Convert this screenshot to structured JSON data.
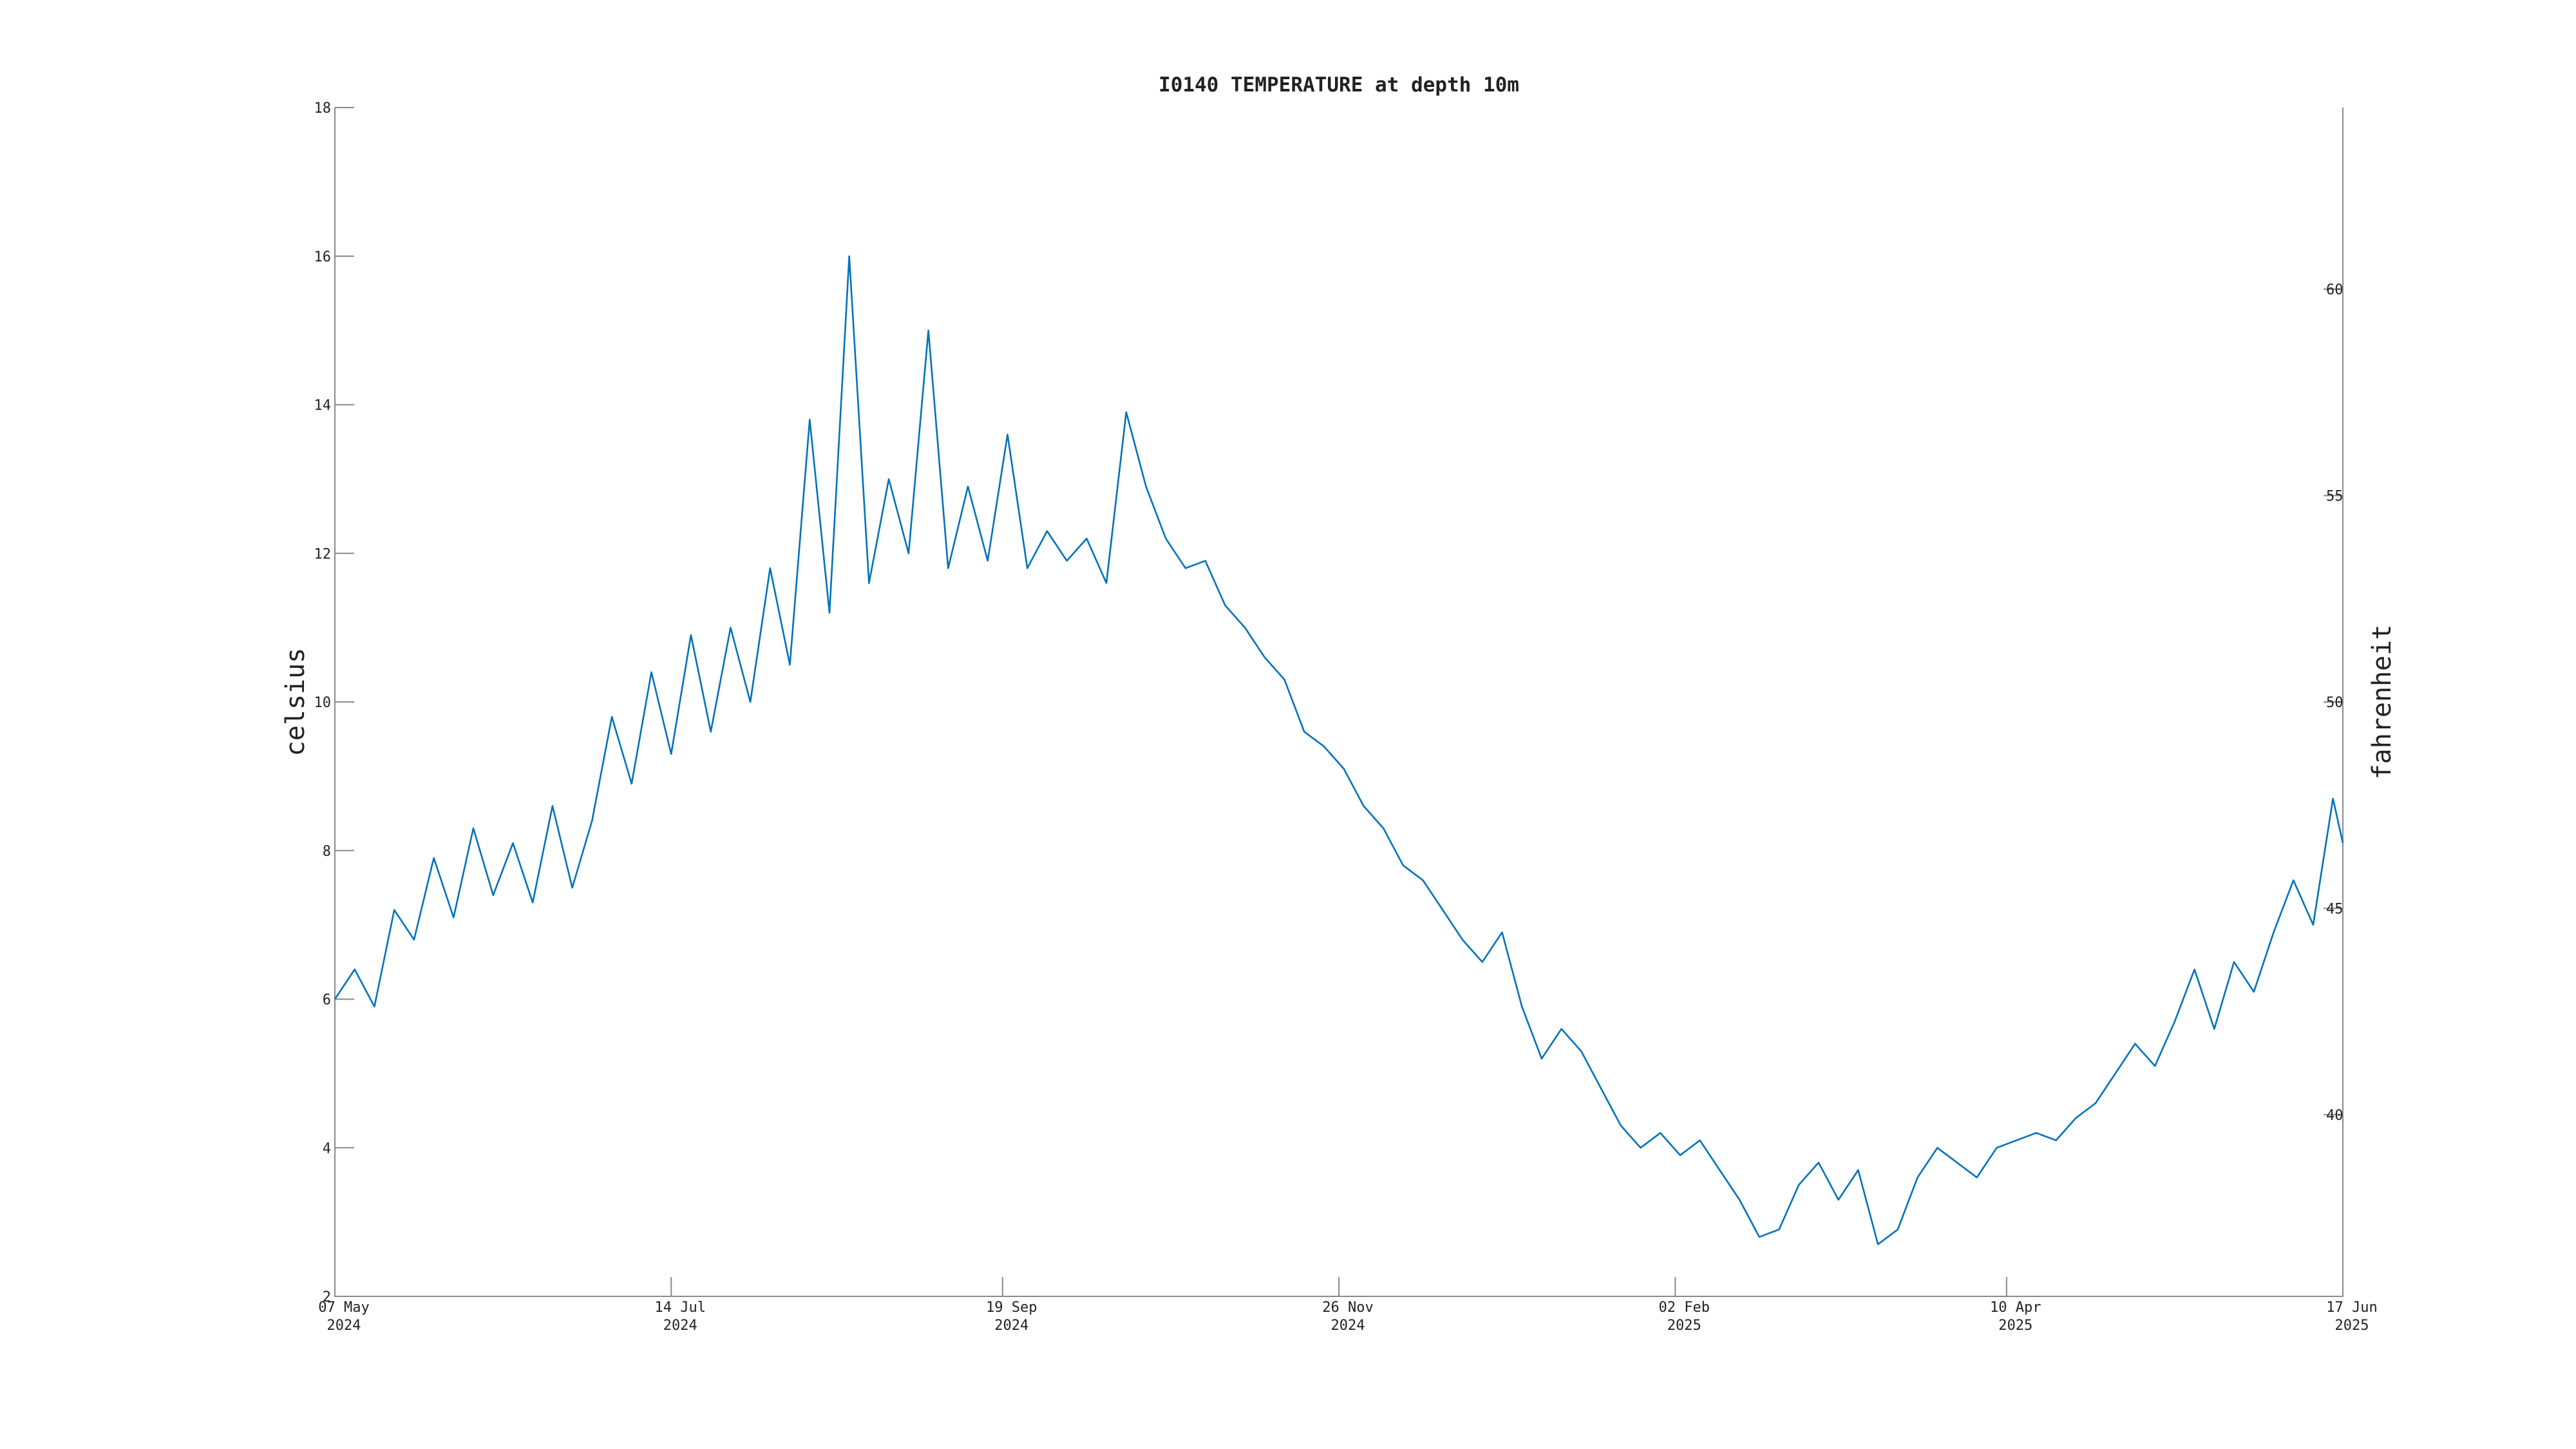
{
  "chart_data": {
    "type": "line",
    "title": "I0140 TEMPERATURE at depth 10m",
    "y_label": "celsius",
    "y2_label": "fahrenheit",
    "xlim": [
      "2024-05-07",
      "2025-06-17"
    ],
    "xticks": [
      {
        "value": "2024-05-07",
        "label": "07 May\n2024"
      },
      {
        "value": "2024-07-14",
        "label": "14 Jul\n2024"
      },
      {
        "value": "2024-09-19",
        "label": "19 Sep\n2024"
      },
      {
        "value": "2024-11-26",
        "label": "26 Nov\n2024"
      },
      {
        "value": "2025-02-02",
        "label": "02 Feb\n2025"
      },
      {
        "value": "2025-04-10",
        "label": "10 Apr\n2025"
      },
      {
        "value": "2025-06-17",
        "label": "17 Jun\n2025"
      }
    ],
    "ylim": [
      2,
      18
    ],
    "yticks": [
      2,
      4,
      6,
      8,
      10,
      12,
      14,
      16,
      18
    ],
    "y2lim": [
      35.6,
      64.4
    ],
    "y2ticks": [
      40,
      45,
      50,
      55,
      60
    ],
    "x": [
      "2024-05-07",
      "2024-05-11",
      "2024-05-15",
      "2024-05-19",
      "2024-05-23",
      "2024-05-27",
      "2024-05-31",
      "2024-06-04",
      "2024-06-08",
      "2024-06-12",
      "2024-06-16",
      "2024-06-20",
      "2024-06-24",
      "2024-06-28",
      "2024-07-02",
      "2024-07-06",
      "2024-07-10",
      "2024-07-14",
      "2024-07-18",
      "2024-07-22",
      "2024-07-26",
      "2024-07-30",
      "2024-08-03",
      "2024-08-07",
      "2024-08-11",
      "2024-08-15",
      "2024-08-19",
      "2024-08-23",
      "2024-08-27",
      "2024-08-31",
      "2024-09-04",
      "2024-09-08",
      "2024-09-12",
      "2024-09-16",
      "2024-09-20",
      "2024-09-24",
      "2024-09-28",
      "2024-10-02",
      "2024-10-06",
      "2024-10-10",
      "2024-10-14",
      "2024-10-18",
      "2024-10-22",
      "2024-10-26",
      "2024-10-30",
      "2024-11-03",
      "2024-11-07",
      "2024-11-11",
      "2024-11-15",
      "2024-11-19",
      "2024-11-23",
      "2024-11-27",
      "2024-12-01",
      "2024-12-05",
      "2024-12-09",
      "2024-12-13",
      "2024-12-17",
      "2024-12-21",
      "2024-12-25",
      "2024-12-29",
      "2025-01-02",
      "2025-01-06",
      "2025-01-10",
      "2025-01-14",
      "2025-01-18",
      "2025-01-22",
      "2025-01-26",
      "2025-01-30",
      "2025-02-03",
      "2025-02-07",
      "2025-02-11",
      "2025-02-15",
      "2025-02-19",
      "2025-02-23",
      "2025-02-27",
      "2025-03-03",
      "2025-03-07",
      "2025-03-11",
      "2025-03-15",
      "2025-03-19",
      "2025-03-23",
      "2025-03-27",
      "2025-03-31",
      "2025-04-04",
      "2025-04-08",
      "2025-04-12",
      "2025-04-16",
      "2025-04-20",
      "2025-04-24",
      "2025-04-28",
      "2025-05-02",
      "2025-05-06",
      "2025-05-10",
      "2025-05-14",
      "2025-05-18",
      "2025-05-22",
      "2025-05-26",
      "2025-05-30",
      "2025-06-03",
      "2025-06-07",
      "2025-06-11",
      "2025-06-15",
      "2025-06-17"
    ],
    "series": [
      {
        "name": "temperature",
        "color": "#0072bd",
        "values": [
          6.0,
          6.4,
          5.9,
          7.2,
          6.8,
          7.9,
          7.1,
          8.3,
          7.4,
          8.1,
          7.3,
          8.6,
          7.5,
          8.4,
          9.8,
          8.9,
          10.4,
          9.3,
          10.9,
          9.6,
          11.0,
          10.0,
          11.8,
          10.5,
          13.8,
          11.2,
          16.0,
          11.6,
          13.0,
          12.0,
          15.0,
          11.8,
          12.9,
          11.9,
          13.6,
          11.8,
          12.3,
          11.9,
          12.2,
          11.6,
          13.9,
          12.9,
          12.2,
          11.8,
          11.9,
          11.3,
          11.0,
          10.6,
          10.3,
          9.6,
          9.4,
          9.1,
          8.6,
          8.3,
          7.8,
          7.6,
          7.2,
          6.8,
          6.5,
          6.9,
          5.9,
          5.2,
          5.6,
          5.3,
          4.8,
          4.3,
          4.0,
          4.2,
          3.9,
          4.1,
          3.7,
          3.3,
          2.8,
          2.9,
          3.5,
          3.8,
          3.3,
          3.7,
          2.7,
          2.9,
          3.6,
          4.0,
          3.8,
          3.6,
          4.0,
          4.1,
          4.2,
          4.1,
          4.4,
          4.6,
          5.0,
          5.4,
          5.1,
          5.7,
          6.4,
          5.6,
          6.5,
          6.1,
          6.9,
          7.6,
          7.0,
          8.7,
          8.1
        ]
      }
    ]
  }
}
